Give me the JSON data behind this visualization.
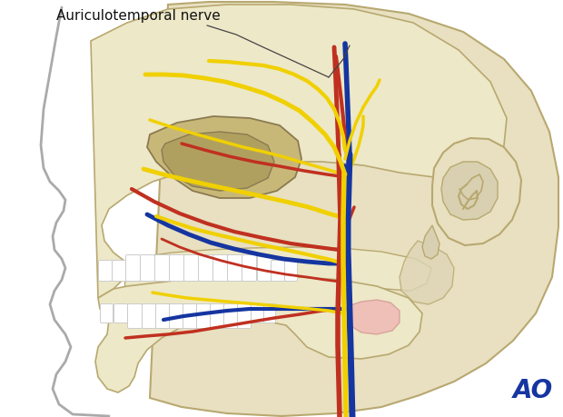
{
  "bg": "#ffffff",
  "skull_fill": "#ede8c8",
  "skull_edge": "#b8a870",
  "skull_edge2": "#8a7a50",
  "cranium_fill": "#e8e0c0",
  "orbit_fill": "#c8b878",
  "face_outline": "#aaaaaa",
  "ear_fill": "#e8e0c0",
  "yellow": "#f0d000",
  "red": "#c03020",
  "blue": "#1535a0",
  "pink": "#f0b0b0",
  "title": "Auriculotemporal nerve",
  "ao": "AO",
  "ao_color": "#1535a0",
  "title_fs": 11,
  "ao_fs": 20
}
